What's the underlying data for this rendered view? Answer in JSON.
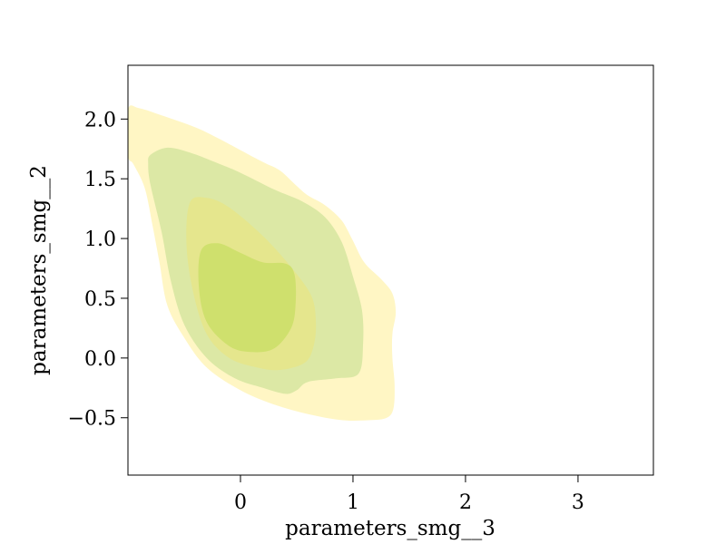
{
  "chart_data": {
    "type": "contour",
    "title": "",
    "xlabel": "parameters_smg__3",
    "ylabel": "parameters_smg__2",
    "xlim": [
      -1.0,
      3.67
    ],
    "ylim": [
      -0.98,
      2.45
    ],
    "xticks": [
      0,
      1,
      2,
      3
    ],
    "xtick_labels": [
      "0",
      "1",
      "2",
      "3"
    ],
    "yticks": [
      -0.5,
      0.0,
      0.5,
      1.0,
      1.5,
      2.0
    ],
    "ytick_labels": [
      "−0.5",
      "0.0",
      "0.5",
      "1.0",
      "1.5",
      "2.0"
    ],
    "grid": false,
    "contour_levels": [
      {
        "name": "outer",
        "color": "#fff6c4",
        "polygon": [
          [
            -1.0,
            2.08
          ],
          [
            -0.9,
            2.09
          ],
          [
            -0.7,
            2.03
          ],
          [
            -0.4,
            1.93
          ],
          [
            -0.2,
            1.84
          ],
          [
            0.0,
            1.74
          ],
          [
            0.2,
            1.64
          ],
          [
            0.35,
            1.57
          ],
          [
            0.5,
            1.44
          ],
          [
            0.6,
            1.36
          ],
          [
            0.75,
            1.28
          ],
          [
            0.9,
            1.15
          ],
          [
            1.0,
            0.98
          ],
          [
            1.1,
            0.8
          ],
          [
            1.25,
            0.66
          ],
          [
            1.35,
            0.54
          ],
          [
            1.38,
            0.38
          ],
          [
            1.35,
            0.2
          ],
          [
            1.35,
            0.0
          ],
          [
            1.37,
            -0.22
          ],
          [
            1.36,
            -0.42
          ],
          [
            1.3,
            -0.5
          ],
          [
            1.15,
            -0.52
          ],
          [
            0.9,
            -0.52
          ],
          [
            0.6,
            -0.47
          ],
          [
            0.3,
            -0.39
          ],
          [
            0.0,
            -0.27
          ],
          [
            -0.3,
            -0.08
          ],
          [
            -0.5,
            0.17
          ],
          [
            -0.65,
            0.44
          ],
          [
            -0.72,
            0.8
          ],
          [
            -0.78,
            1.1
          ],
          [
            -0.85,
            1.42
          ],
          [
            -0.95,
            1.62
          ],
          [
            -1.0,
            1.7
          ]
        ]
      },
      {
        "name": "outer-mid",
        "color": "#dce8a5",
        "polygon": [
          [
            -0.8,
            1.7
          ],
          [
            -0.65,
            1.76
          ],
          [
            -0.45,
            1.72
          ],
          [
            -0.2,
            1.63
          ],
          [
            0.0,
            1.55
          ],
          [
            0.3,
            1.41
          ],
          [
            0.55,
            1.31
          ],
          [
            0.75,
            1.18
          ],
          [
            0.9,
            0.97
          ],
          [
            1.0,
            0.68
          ],
          [
            1.08,
            0.4
          ],
          [
            1.09,
            0.12
          ],
          [
            1.05,
            -0.13
          ],
          [
            0.85,
            -0.17
          ],
          [
            0.6,
            -0.2
          ],
          [
            0.5,
            -0.27
          ],
          [
            0.4,
            -0.3
          ],
          [
            0.2,
            -0.25
          ],
          [
            -0.05,
            -0.17
          ],
          [
            -0.3,
            -0.0
          ],
          [
            -0.5,
            0.28
          ],
          [
            -0.62,
            0.65
          ],
          [
            -0.7,
            1.05
          ],
          [
            -0.8,
            1.45
          ],
          [
            -0.82,
            1.62
          ]
        ]
      },
      {
        "name": "inner-mid",
        "color": "#e5e68d",
        "polygon": [
          [
            -0.45,
            1.3
          ],
          [
            -0.3,
            1.34
          ],
          [
            -0.1,
            1.26
          ],
          [
            0.2,
            1.02
          ],
          [
            0.45,
            0.76
          ],
          [
            0.63,
            0.52
          ],
          [
            0.67,
            0.3
          ],
          [
            0.65,
            0.1
          ],
          [
            0.57,
            -0.04
          ],
          [
            0.35,
            -0.1
          ],
          [
            0.15,
            -0.08
          ],
          [
            -0.1,
            0.0
          ],
          [
            -0.3,
            0.2
          ],
          [
            -0.42,
            0.55
          ],
          [
            -0.48,
            0.95
          ]
        ]
      },
      {
        "name": "inner",
        "color": "#cfe06d",
        "polygon": [
          [
            -0.35,
            0.9
          ],
          [
            -0.2,
            0.96
          ],
          [
            0.0,
            0.88
          ],
          [
            0.2,
            0.8
          ],
          [
            0.4,
            0.79
          ],
          [
            0.48,
            0.7
          ],
          [
            0.49,
            0.45
          ],
          [
            0.45,
            0.25
          ],
          [
            0.3,
            0.08
          ],
          [
            0.1,
            0.05
          ],
          [
            -0.1,
            0.1
          ],
          [
            -0.3,
            0.3
          ],
          [
            -0.37,
            0.6
          ]
        ]
      }
    ]
  }
}
